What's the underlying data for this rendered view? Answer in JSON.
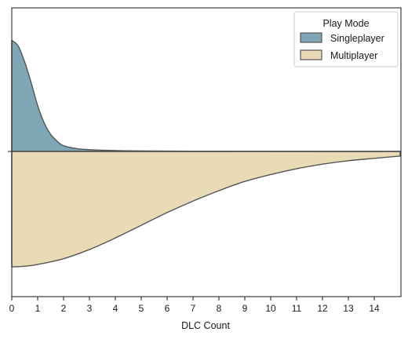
{
  "chart_data": {
    "type": "area",
    "chart_kind": "split violin / mirrored density",
    "title": "",
    "xlabel": "DLC Count",
    "ylabel": "",
    "xlim": [
      0,
      15
    ],
    "x_ticks": [
      "0",
      "1",
      "2",
      "3",
      "4",
      "5",
      "6",
      "7",
      "8",
      "9",
      "10",
      "11",
      "12",
      "13",
      "14"
    ],
    "grid": false,
    "legend": {
      "title": "Play Mode",
      "placement": "top-right"
    },
    "series": [
      {
        "name": "Singleplayer",
        "side": "upper",
        "color": "#7fa6b5",
        "x": [
          0,
          0.25,
          0.5,
          0.75,
          1,
          1.25,
          1.5,
          1.75,
          2,
          2.5,
          3,
          4,
          5,
          7,
          10,
          15
        ],
        "density": [
          0.97,
          0.92,
          0.78,
          0.6,
          0.4,
          0.25,
          0.15,
          0.09,
          0.05,
          0.025,
          0.015,
          0.008,
          0.005,
          0.002,
          0.001,
          0.0
        ]
      },
      {
        "name": "Multiplayer",
        "side": "lower",
        "color": "#e8dbb6",
        "x": [
          0,
          0.5,
          1,
          2,
          3,
          4,
          5,
          6,
          7,
          8,
          9,
          10,
          11,
          12,
          13,
          14,
          15
        ],
        "density": [
          1.0,
          0.995,
          0.98,
          0.93,
          0.85,
          0.75,
          0.64,
          0.53,
          0.43,
          0.34,
          0.26,
          0.2,
          0.15,
          0.11,
          0.08,
          0.06,
          0.04
        ]
      }
    ]
  }
}
